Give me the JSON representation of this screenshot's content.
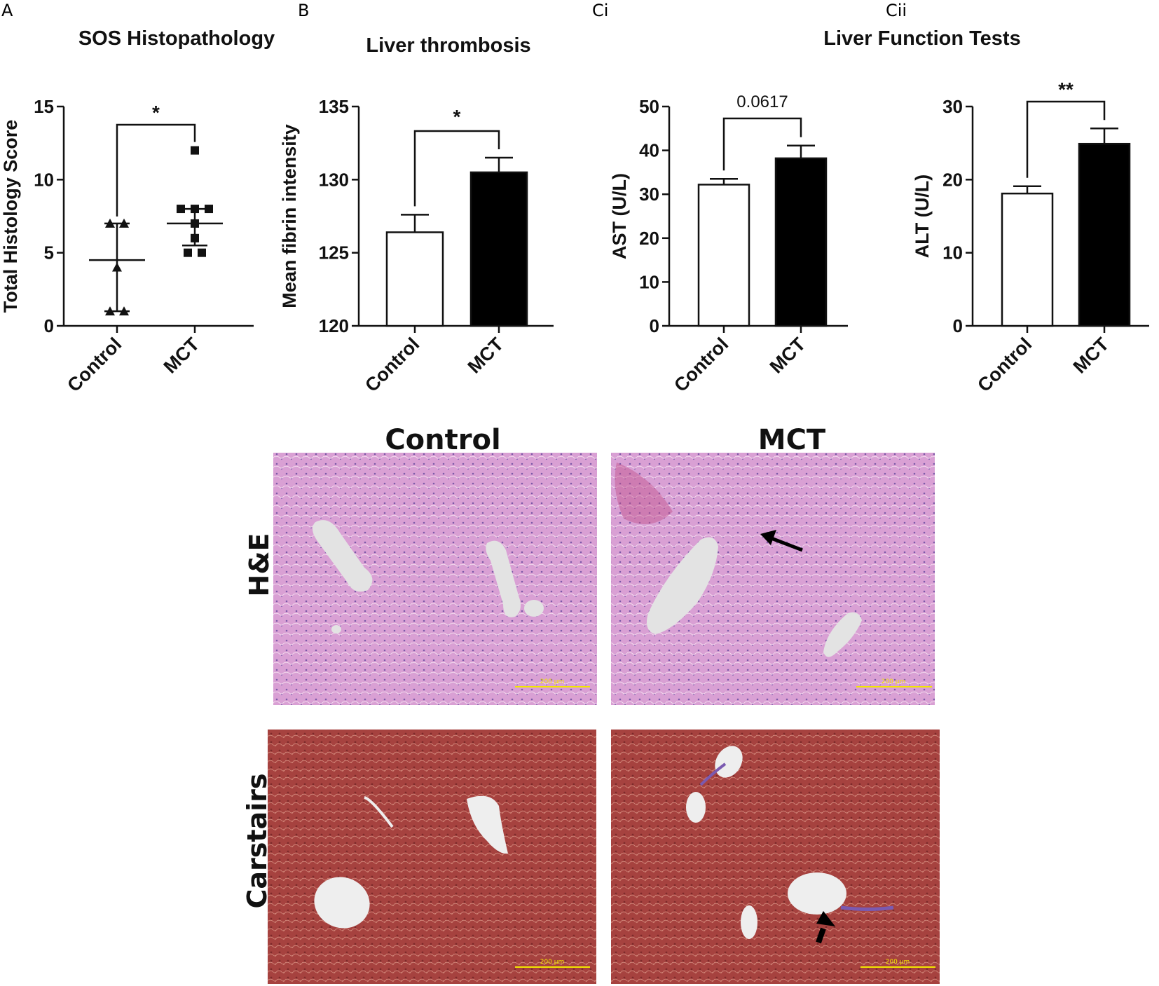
{
  "panel_letters": {
    "a": "A",
    "b": "B",
    "ci": "Ci",
    "cii": "Cii"
  },
  "section_title_liver_function": "Liver Function Tests",
  "chart_data": [
    {
      "id": "A",
      "type": "scatter",
      "title": "SOS Histopathology",
      "xlabel": "",
      "ylabel": "Total Histology Score",
      "categories": [
        "Control",
        "MCT"
      ],
      "ylim": [
        0,
        15
      ],
      "yticks": [
        0,
        5,
        10,
        15
      ],
      "groups": [
        {
          "category": "Control",
          "marker": "triangle",
          "points": [
            1,
            1,
            4,
            7,
            7
          ],
          "median": 4.5,
          "q1": 1,
          "q3": 7
        },
        {
          "category": "MCT",
          "marker": "square",
          "points": [
            12,
            8,
            8,
            8,
            7,
            6,
            5,
            5
          ],
          "median": 7,
          "q1": 5.5,
          "q3": 8
        }
      ],
      "significance": "*"
    },
    {
      "id": "B",
      "type": "bar",
      "title": "Liver thrombosis",
      "xlabel": "",
      "ylabel": "Mean fibrin intensity",
      "categories": [
        "Control",
        "MCT"
      ],
      "values": [
        126.4,
        130.5
      ],
      "errors": [
        1.2,
        1.0
      ],
      "fills": [
        "#ffffff",
        "#000000"
      ],
      "ylim": [
        120,
        135
      ],
      "yticks": [
        120,
        125,
        130,
        135
      ],
      "significance": "*"
    },
    {
      "id": "Ci",
      "type": "bar",
      "title": "",
      "xlabel": "",
      "ylabel": "AST (U/L)",
      "categories": [
        "Control",
        "MCT"
      ],
      "values": [
        32.2,
        38.2
      ],
      "errors": [
        1.3,
        2.9
      ],
      "fills": [
        "#ffffff",
        "#000000"
      ],
      "ylim": [
        0,
        50
      ],
      "yticks": [
        0,
        10,
        20,
        30,
        40,
        50
      ],
      "significance": "0.0617"
    },
    {
      "id": "Cii",
      "type": "bar",
      "title": "",
      "xlabel": "",
      "ylabel": "ALT (U/L)",
      "categories": [
        "Control",
        "MCT"
      ],
      "values": [
        18.1,
        24.9
      ],
      "errors": [
        1.0,
        2.1
      ],
      "fills": [
        "#ffffff",
        "#000000"
      ],
      "ylim": [
        0,
        30
      ],
      "yticks": [
        0,
        10,
        20,
        30
      ],
      "significance": "**"
    }
  ],
  "micrographs": {
    "column_headers": [
      "Control",
      "MCT"
    ],
    "row_headers": [
      "H&E",
      "Carstairs"
    ],
    "scale_bar_label": "200 µm",
    "he_color": "#d9a0d4",
    "carstairs_color": "#a6423f",
    "lumen_color": "#e3e3e3"
  }
}
